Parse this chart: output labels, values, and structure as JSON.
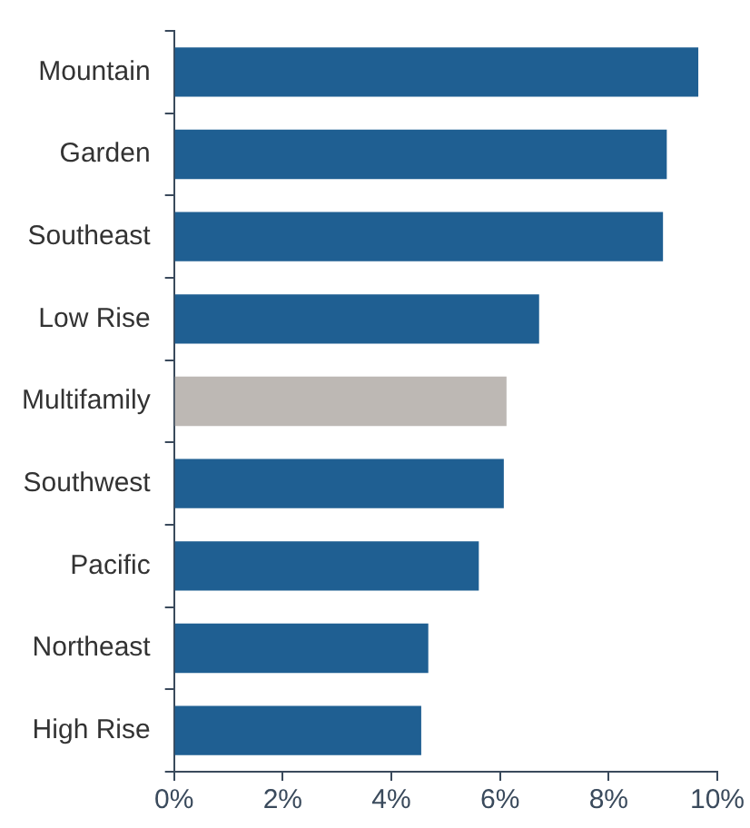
{
  "chart_data": {
    "type": "bar",
    "orientation": "horizontal",
    "categories": [
      "Mountain",
      "Garden",
      "Southeast",
      "Low Rise",
      "Multifamily",
      "Southwest",
      "Pacific",
      "Northeast",
      "High Rise"
    ],
    "values": [
      9.65,
      9.07,
      9.0,
      6.72,
      6.12,
      6.07,
      5.61,
      4.68,
      4.55
    ],
    "colors": [
      "#1f5f92",
      "#1f5f92",
      "#1f5f92",
      "#1f5f92",
      "#bdb8b4",
      "#1f5f92",
      "#1f5f92",
      "#1f5f92",
      "#1f5f92"
    ],
    "xlim": [
      0,
      10
    ],
    "xticks": [
      {
        "value": 0,
        "label": "0%"
      },
      {
        "value": 2,
        "label": "2%"
      },
      {
        "value": 4,
        "label": "4%"
      },
      {
        "value": 6,
        "label": "6%"
      },
      {
        "value": 8,
        "label": "8%"
      },
      {
        "value": 10,
        "label": "10%"
      }
    ],
    "grid": false
  }
}
